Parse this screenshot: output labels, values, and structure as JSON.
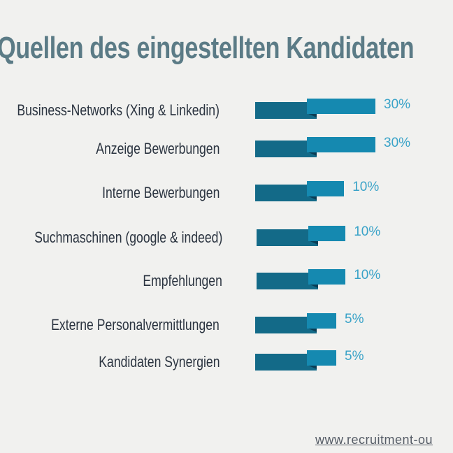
{
  "chart_data": {
    "type": "bar",
    "title": "Quellen des eingestellten Kandidaten",
    "categories": [
      "Business-Networks (Xing & Linkedin)",
      "Anzeige Bewerbungen",
      "Interne Bewerbungen",
      "Suchmaschinen (google & indeed)",
      "Empfehlungen",
      "Externe Personalvermittlungen",
      "Kandidaten Synergien"
    ],
    "values": [
      30,
      30,
      10,
      10,
      10,
      5,
      5
    ],
    "value_labels": [
      "30%",
      "30%",
      "10%",
      "10%",
      "10%",
      "5%",
      "5%"
    ],
    "unit": "%",
    "orientation": "horizontal",
    "colors": {
      "bar": "#1589b0",
      "bar_base": "#136a88",
      "title": "#5b7b86",
      "value_label": "#3aa3c8"
    },
    "grid": false
  },
  "footer": {
    "url": "www.recruitment-ou"
  }
}
